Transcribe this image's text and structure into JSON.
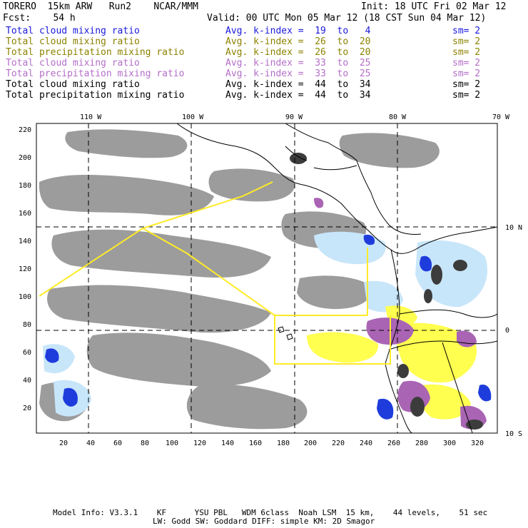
{
  "header": {
    "model": "TORERO  15km ARW   Run2    NCAR/MMM",
    "init": "Init: 18 UTC Fri 02 Mar 12",
    "fcst": "Fcst:    54 h",
    "valid": "Valid: 00 UTC Mon 05 Mar 12 (18 CST Sun 04 Mar 12)"
  },
  "legend": [
    {
      "field": "Total cloud mixing ratio",
      "kidx": "Avg. k-index =  19  to   4",
      "sm": "sm= 2",
      "color": "#1a1adc"
    },
    {
      "field": "Total cloud mixing ratio",
      "kidx": "Avg. k-index =  26  to  20",
      "sm": "sm= 2",
      "color": "#8c8200"
    },
    {
      "field": "Total precipitation mixing ratio",
      "kidx": "Avg. k-index =  26  to  20",
      "sm": "sm= 2",
      "color": "#8c8200"
    },
    {
      "field": "Total cloud mixing ratio",
      "kidx": "Avg. k-index =  33  to  25",
      "sm": "sm= 2",
      "color": "#b46ec8"
    },
    {
      "field": "Total precipitation mixing ratio",
      "kidx": "Avg. k-index =  33  to  25",
      "sm": "sm= 2",
      "color": "#b46ec8"
    },
    {
      "field": "Total cloud mixing ratio",
      "kidx": "Avg. k-index =  44  to  34",
      "sm": "sm= 2",
      "color": "#000000"
    },
    {
      "field": "Total precipitation mixing ratio",
      "kidx": "Avg. k-index =  44  to  34",
      "sm": "sm= 2",
      "color": "#000000"
    }
  ],
  "map": {
    "lon_labels": [
      "110 W",
      "100 W",
      "90 W",
      "80 W",
      "70 W"
    ],
    "lat_labels": [
      "10 N",
      "0",
      "10 S"
    ],
    "y_grid_labels": [
      "220",
      "200",
      "180",
      "160",
      "140",
      "120",
      "100",
      "80",
      "60",
      "40",
      "20"
    ],
    "x_grid_labels": [
      "20",
      "40",
      "60",
      "80",
      "100",
      "120",
      "140",
      "160",
      "180",
      "200",
      "220",
      "240",
      "260",
      "280",
      "300",
      "320"
    ],
    "colors": {
      "cloud_gray": "#9c9c9c",
      "cloud_dark": "#3c3c3c",
      "light_blue": "#c8e6fa",
      "blue": "#1e3cdc",
      "yellow": "#ffff50",
      "purple": "#aa64b4",
      "track": "#ffeb28"
    }
  },
  "footer": {
    "line1": "Model Info: V3.3.1    KF      YSU PBL   WDM 6class  Noah LSM  15 km,    44 levels,    51 sec",
    "line2": "LW: Godd SW: Goddard DIFF: simple KM: 2D Smagor"
  }
}
